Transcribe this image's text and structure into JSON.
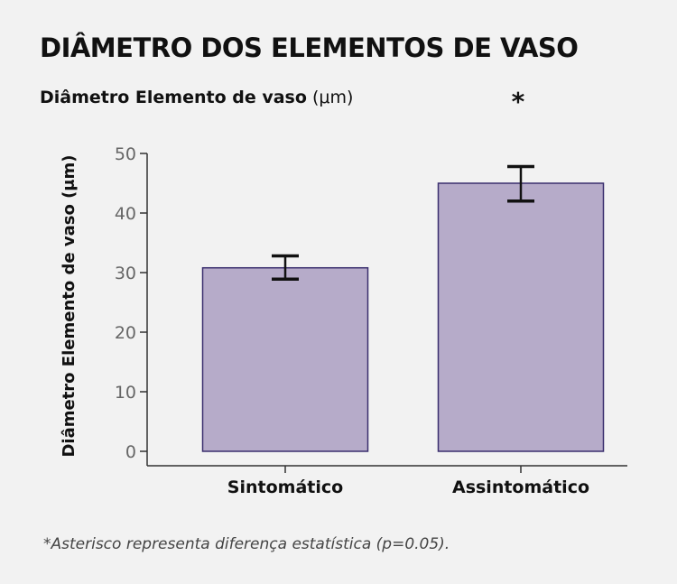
{
  "title": "DIÂMETRO DOS ELEMENTOS DE VASO",
  "subtitle_bold": "Diâmetro Elemento de vaso",
  "subtitle_unit": "(μm)",
  "footnote": "*Asterisco representa diferença estatística (p=0.05).",
  "chart_data": {
    "type": "bar",
    "title": "DIÂMETRO DOS ELEMENTOS DE VASO",
    "ylabel": "Diâmetro Elemento de vaso (μm)",
    "xlabel": "",
    "categories": [
      "Sintomático",
      "Assintomático"
    ],
    "values": [
      30.8,
      45.0
    ],
    "error_low": [
      28.9,
      42.0
    ],
    "error_high": [
      32.8,
      47.8
    ],
    "significance_marker": "*",
    "significance_category": "Assintomático",
    "ylim": [
      0,
      50
    ],
    "yticks": [
      0,
      10,
      20,
      30,
      40,
      50
    ],
    "grid": false,
    "colors": {
      "bar_fill": "#b6abc9",
      "bar_stroke": "#3a2e6e",
      "axis": "#333333"
    }
  }
}
